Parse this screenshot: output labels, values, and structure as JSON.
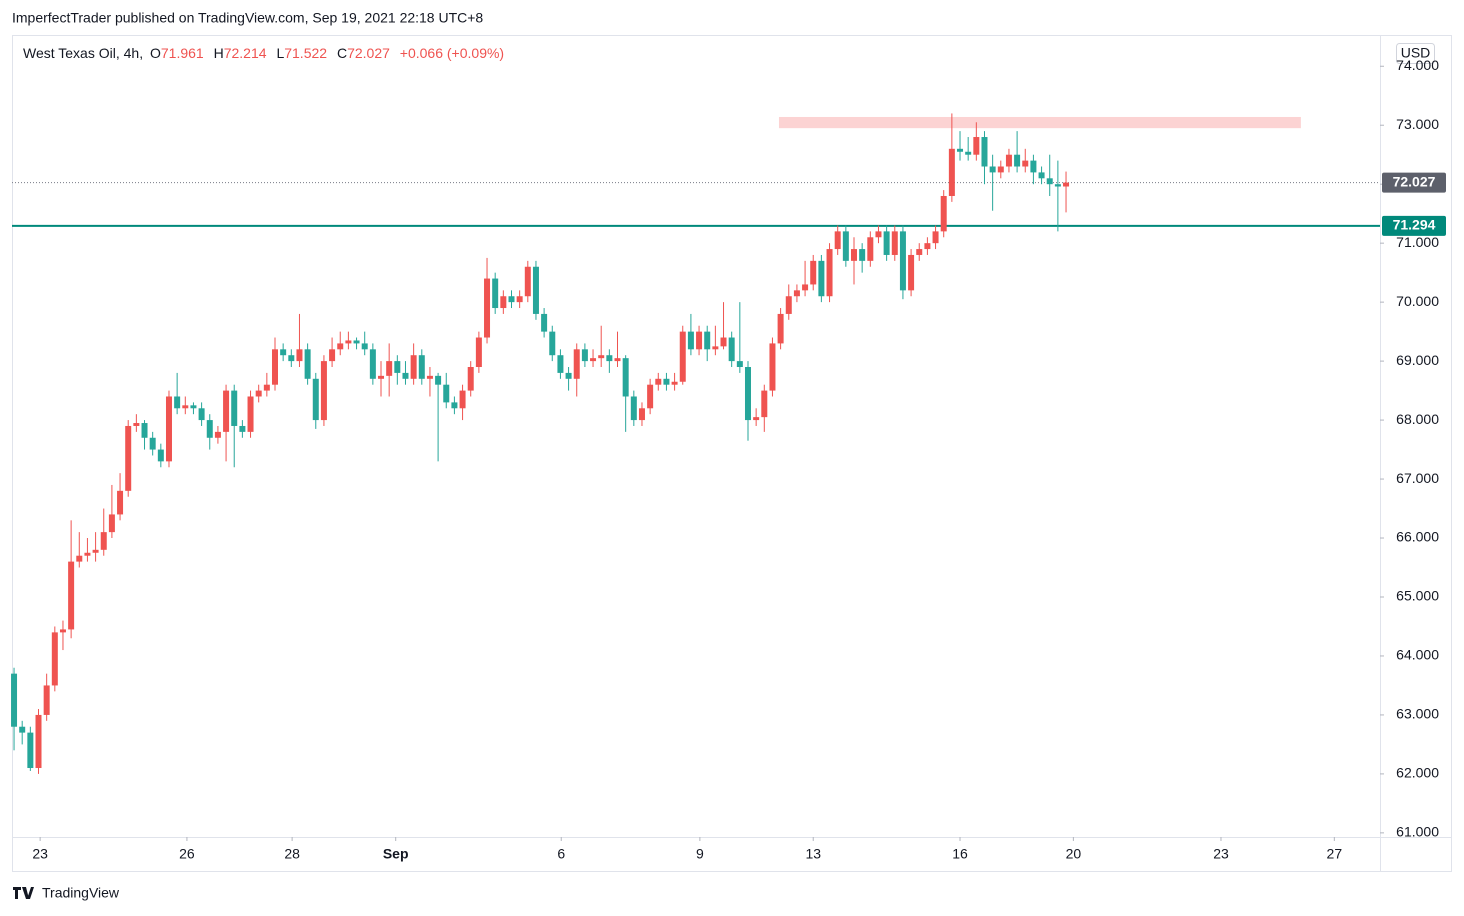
{
  "header": {
    "publisher": "ImperfectTrader published on TradingView.com, Sep 19, 2021 22:18 UTC+8",
    "footer": "TradingView"
  },
  "chart_data": {
    "type": "candlestick",
    "symbol": "West Texas Oil, 4h,",
    "ohlc_letters": [
      "O",
      "H",
      "L",
      "C"
    ],
    "change": "+0.066 (+0.09%)",
    "currency": "USD",
    "up_color": "#ef5350",
    "down_color": "#26a69a",
    "open": [
      63.7,
      62.8,
      62.7,
      62.1,
      63.0,
      63.5,
      64.4,
      64.45,
      65.6,
      65.7,
      65.75,
      65.8,
      66.1,
      66.4,
      66.8,
      67.9,
      67.95,
      67.7,
      67.5,
      67.3,
      68.4,
      68.2,
      68.25,
      68.2,
      68.0,
      67.7,
      67.8,
      68.5,
      67.9,
      67.8,
      68.4,
      68.5,
      68.6,
      69.2,
      69.1,
      69.0,
      69.2,
      68.7,
      68.0,
      69.0,
      69.2,
      69.3,
      69.35,
      69.3,
      69.2,
      68.7,
      68.75,
      69.0,
      68.8,
      68.7,
      69.1,
      68.7,
      68.75,
      68.6,
      68.3,
      68.2,
      68.5,
      68.9,
      69.4,
      70.4,
      69.9,
      70.1,
      70.0,
      70.1,
      70.6,
      69.8,
      69.5,
      69.1,
      68.8,
      68.7,
      69.2,
      69.0,
      69.05,
      69.1,
      69.0,
      69.05,
      68.4,
      68.0,
      68.2,
      68.6,
      68.7,
      68.6,
      68.65,
      69.5,
      69.2,
      69.5,
      69.2,
      69.25,
      69.4,
      69.0,
      68.9,
      68.0,
      68.05,
      68.5,
      69.3,
      69.8,
      70.1,
      70.2,
      70.3,
      70.7,
      70.1,
      70.9,
      71.2,
      70.7,
      70.9,
      70.7,
      71.1,
      71.2,
      70.8,
      71.2,
      70.2,
      70.8,
      70.9,
      71.0,
      71.2,
      71.8,
      72.6,
      72.55,
      72.5,
      72.8,
      72.3,
      72.2,
      72.3,
      72.5,
      72.3,
      72.4,
      72.2,
      72.1,
      72.0,
      71.961
    ],
    "high": [
      63.8,
      62.9,
      62.8,
      63.1,
      63.7,
      64.5,
      64.6,
      66.3,
      66.1,
      66.0,
      66.1,
      66.5,
      66.9,
      67.1,
      68.0,
      68.1,
      68.0,
      67.8,
      67.6,
      68.5,
      68.8,
      68.4,
      68.3,
      68.3,
      68.1,
      67.9,
      68.6,
      68.6,
      68.0,
      68.5,
      68.6,
      68.8,
      69.4,
      69.3,
      69.2,
      69.8,
      69.3,
      68.8,
      69.1,
      69.4,
      69.5,
      69.5,
      69.4,
      69.5,
      69.3,
      69.0,
      69.3,
      69.1,
      69.0,
      69.3,
      69.2,
      68.9,
      68.8,
      68.8,
      68.4,
      68.6,
      69.0,
      69.5,
      70.75,
      70.5,
      70.2,
      70.2,
      70.2,
      70.7,
      70.7,
      69.9,
      69.6,
      69.2,
      68.9,
      69.3,
      69.3,
      69.2,
      69.6,
      69.2,
      69.5,
      69.1,
      68.5,
      68.3,
      68.7,
      68.8,
      68.8,
      68.8,
      69.6,
      69.8,
      69.6,
      69.6,
      69.6,
      70.0,
      69.5,
      70.0,
      69.0,
      68.2,
      68.6,
      69.4,
      69.9,
      70.3,
      70.3,
      70.7,
      70.8,
      70.8,
      71.0,
      71.3,
      71.3,
      71.1,
      71.0,
      71.2,
      71.3,
      71.3,
      71.3,
      71.3,
      70.9,
      71.0,
      71.1,
      71.3,
      71.9,
      73.2,
      72.9,
      72.8,
      73.05,
      72.9,
      72.5,
      72.4,
      72.6,
      72.9,
      72.6,
      72.5,
      72.3,
      72.5,
      72.4,
      72.214
    ],
    "low": [
      62.4,
      62.5,
      62.05,
      62.0,
      62.9,
      63.4,
      64.1,
      64.3,
      65.5,
      65.6,
      65.6,
      65.7,
      66.0,
      66.3,
      66.7,
      67.8,
      67.5,
      67.4,
      67.2,
      67.2,
      68.1,
      68.1,
      68.1,
      67.9,
      67.5,
      67.6,
      67.3,
      67.2,
      67.7,
      67.7,
      68.3,
      68.4,
      68.5,
      69.0,
      68.9,
      68.9,
      68.6,
      67.85,
      67.9,
      68.9,
      69.1,
      69.2,
      69.2,
      69.1,
      68.6,
      68.4,
      68.4,
      68.6,
      68.6,
      68.6,
      68.6,
      68.4,
      67.3,
      68.2,
      68.1,
      68.0,
      68.4,
      68.8,
      69.3,
      69.8,
      69.8,
      69.9,
      69.9,
      70.0,
      69.7,
      69.4,
      69.0,
      68.7,
      68.5,
      68.4,
      68.9,
      68.9,
      68.9,
      68.8,
      68.9,
      67.8,
      67.9,
      67.9,
      68.1,
      68.5,
      68.5,
      68.5,
      68.6,
      69.1,
      69.1,
      69.0,
      69.1,
      69.2,
      68.9,
      68.8,
      67.65,
      67.9,
      67.8,
      68.4,
      69.2,
      69.7,
      70.0,
      70.1,
      70.2,
      70.0,
      70.0,
      70.8,
      70.6,
      70.3,
      70.5,
      70.6,
      71.0,
      70.7,
      70.7,
      70.05,
      70.1,
      70.7,
      70.8,
      70.9,
      71.1,
      71.7,
      72.4,
      72.4,
      72.4,
      72.0,
      71.55,
      72.1,
      72.2,
      72.2,
      72.2,
      72.0,
      72.0,
      71.8,
      71.2,
      71.522
    ],
    "close": [
      62.8,
      62.7,
      62.1,
      63.0,
      63.5,
      64.4,
      64.45,
      65.6,
      65.7,
      65.75,
      65.8,
      66.1,
      66.4,
      66.8,
      67.9,
      67.95,
      67.7,
      67.5,
      67.3,
      68.4,
      68.2,
      68.25,
      68.2,
      68.0,
      67.7,
      67.8,
      68.5,
      67.9,
      67.8,
      68.4,
      68.5,
      68.6,
      69.2,
      69.1,
      69.0,
      69.2,
      68.7,
      68.0,
      69.0,
      69.2,
      69.3,
      69.35,
      69.3,
      69.2,
      68.7,
      68.75,
      69.0,
      68.8,
      68.7,
      69.1,
      68.7,
      68.75,
      68.6,
      68.3,
      68.2,
      68.5,
      68.9,
      69.4,
      70.4,
      69.9,
      70.1,
      70.0,
      70.1,
      70.6,
      69.8,
      69.5,
      69.1,
      68.8,
      68.7,
      69.2,
      69.0,
      69.05,
      69.1,
      69.0,
      69.05,
      68.4,
      68.0,
      68.2,
      68.6,
      68.7,
      68.6,
      68.65,
      69.5,
      69.2,
      69.5,
      69.2,
      69.25,
      69.4,
      69.0,
      68.9,
      68.0,
      68.05,
      68.5,
      69.3,
      69.8,
      70.1,
      70.2,
      70.3,
      70.7,
      70.1,
      70.9,
      71.2,
      70.7,
      70.9,
      70.7,
      71.1,
      71.2,
      70.8,
      71.2,
      70.2,
      70.8,
      70.9,
      71.0,
      71.2,
      71.8,
      72.6,
      72.55,
      72.5,
      72.8,
      72.3,
      72.2,
      72.3,
      72.5,
      72.3,
      72.4,
      72.2,
      72.1,
      72.0,
      71.961,
      72.027
    ],
    "xlim": [
      -0.25,
      167.5
    ],
    "xticks": [
      {
        "value": 3.2,
        "label": "23"
      },
      {
        "value": 21.2,
        "label": "26"
      },
      {
        "value": 34.1,
        "label": "28"
      },
      {
        "value": 46.8,
        "label": "Sep"
      },
      {
        "value": 67.1,
        "label": "6"
      },
      {
        "value": 84.1,
        "label": "9"
      },
      {
        "value": 98,
        "label": "13"
      },
      {
        "value": 116,
        "label": "16"
      },
      {
        "value": 129.9,
        "label": "20"
      },
      {
        "value": 148,
        "label": "23"
      },
      {
        "value": 161.9,
        "label": "27"
      }
    ],
    "ylim": [
      60.93,
      74.53
    ],
    "yticks": [
      {
        "value": 61,
        "label": "61.000"
      },
      {
        "value": 62,
        "label": "62.000"
      },
      {
        "value": 63,
        "label": "63.000"
      },
      {
        "value": 64,
        "label": "64.000"
      },
      {
        "value": 65,
        "label": "65.000"
      },
      {
        "value": 66,
        "label": "66.000"
      },
      {
        "value": 67,
        "label": "67.000"
      },
      {
        "value": 68,
        "label": "68.000"
      },
      {
        "value": 69,
        "label": "69.000"
      },
      {
        "value": 70,
        "label": "70.000"
      },
      {
        "value": 71,
        "label": "71.000"
      },
      {
        "value": 72,
        "label": "72.000"
      },
      {
        "value": 73,
        "label": "73.000"
      },
      {
        "value": 74,
        "label": "74.000"
      }
    ],
    "hline": {
      "value": 71.294,
      "color": "#00897b"
    },
    "zone": {
      "y": [
        72.95,
        73.14
      ],
      "x": [
        93.8,
        157.8
      ],
      "color": "#fcd3d3"
    }
  }
}
